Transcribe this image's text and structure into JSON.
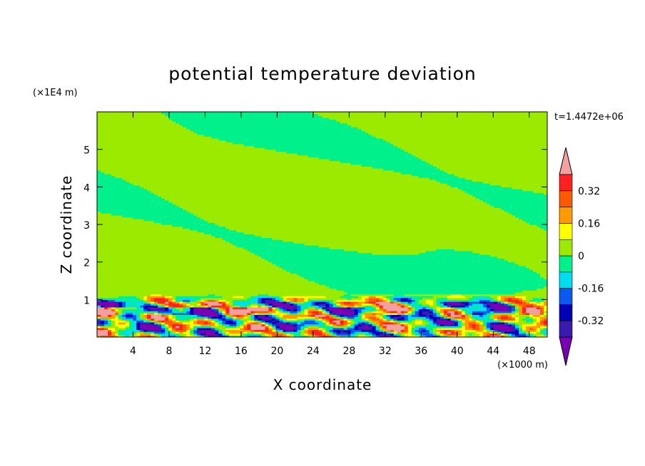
{
  "chart_data": {
    "type": "heatmap",
    "title": "potential temperature deviation",
    "xlabel": "X coordinate",
    "ylabel": "Z coordinate",
    "x_unit": "(×1000 m)",
    "y_unit": "(×1E4 m)",
    "time_label": "t=1.4472e+06",
    "xlim": [
      0,
      50
    ],
    "ylim": [
      0,
      6
    ],
    "x_ticks": [
      4,
      8,
      12,
      16,
      20,
      24,
      28,
      32,
      36,
      40,
      44,
      48
    ],
    "y_ticks": [
      1,
      2,
      3,
      4,
      5
    ],
    "colorbar": {
      "levels": [
        -0.4,
        -0.32,
        -0.24,
        -0.16,
        -0.08,
        0,
        0.08,
        0.16,
        0.24,
        0.32,
        0.4
      ],
      "tick_labels": [
        "0.32",
        "0.16",
        "0",
        "-0.16",
        "-0.32"
      ],
      "tick_values": [
        0.32,
        0.16,
        0,
        -0.16,
        -0.32
      ],
      "colors_low_to_high": [
        "#7a00b4",
        "#3a1bb0",
        "#0000b4",
        "#0a5af0",
        "#00dcf0",
        "#00f08c",
        "#9bea00",
        "#ffff00",
        "#ff9a00",
        "#ff5a00",
        "#ff2020",
        "#f4a0a0"
      ]
    },
    "regions": [
      {
        "description": "upper layer mostly weakly positive (light green) with bands of slightly negative (teal-green)",
        "z_range": [
          1.2,
          6.0
        ],
        "dominant_value": 0.04
      },
      {
        "description": "turbulent boundary layer with strong positive and negative anomalies",
        "z_range": [
          0.0,
          1.2
        ],
        "min_value": -0.4,
        "max_value": 0.4
      }
    ]
  }
}
